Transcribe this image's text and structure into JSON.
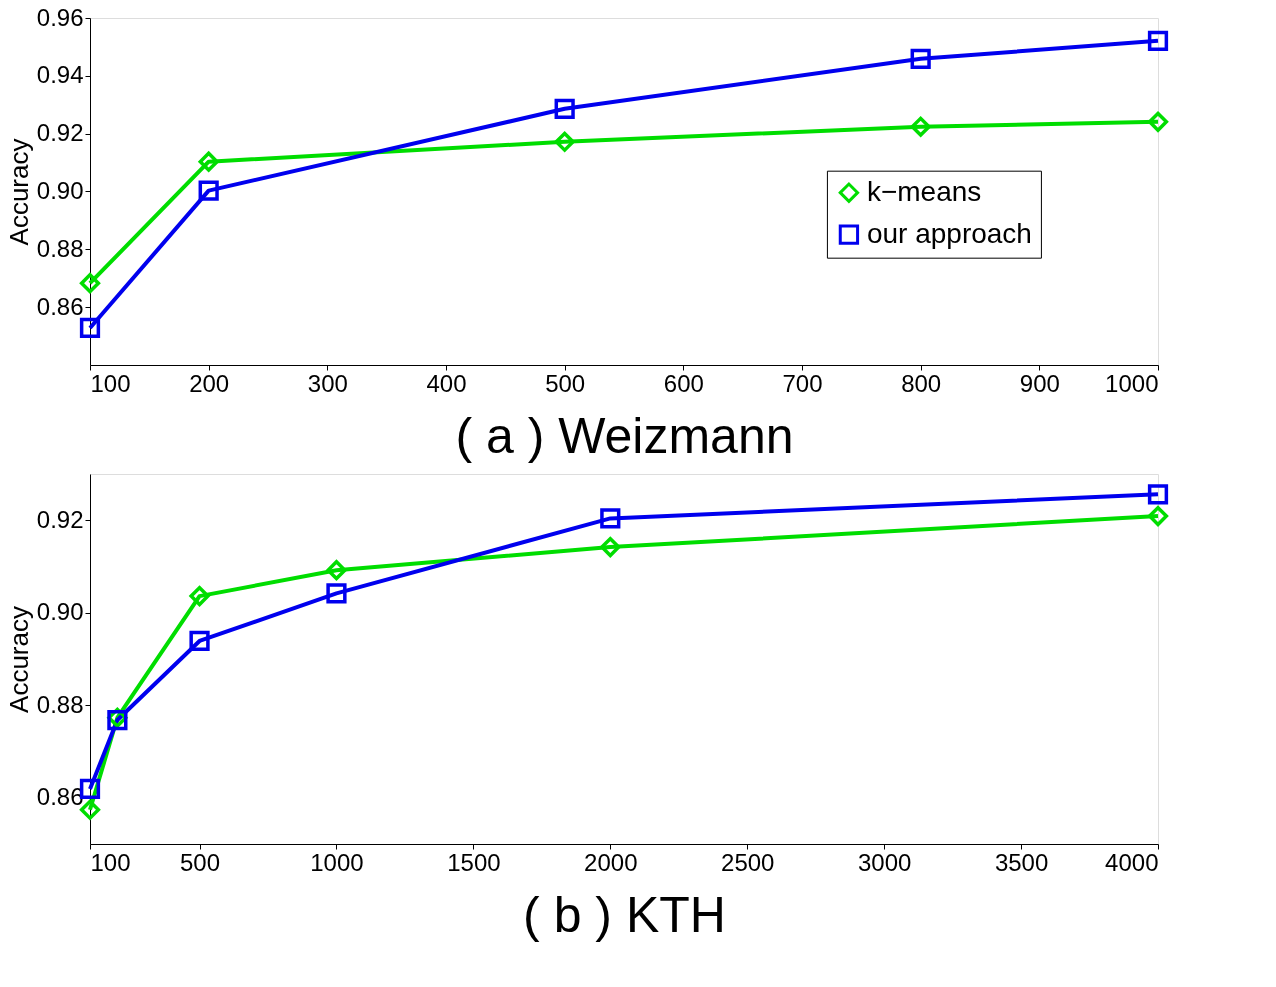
{
  "chart_data": [
    {
      "type": "line",
      "xlabel": "( a ) Weizmann",
      "ylabel": "Accuracy",
      "x": [
        100,
        200,
        500,
        800,
        1000
      ],
      "series": [
        {
          "name": "k−means",
          "color": "#00dd00",
          "marker": "diamond",
          "values": [
            0.8683,
            0.9103,
            0.9172,
            0.9224,
            0.9241
          ]
        },
        {
          "name": "our approach",
          "color": "#0000ee",
          "marker": "square",
          "values": [
            0.8528,
            0.9003,
            0.9286,
            0.9459,
            0.9521
          ]
        }
      ],
      "xlim": [
        100,
        1000
      ],
      "xticks": [
        100,
        200,
        300,
        400,
        500,
        600,
        700,
        800,
        900,
        1000
      ],
      "ylim": [
        0.84,
        0.96
      ],
      "yticks": [
        0.86,
        0.88,
        {
          "value": 0.9,
          "label": "0.90"
        },
        0.92,
        0.94,
        0.96
      ],
      "grid": false,
      "legend": "right",
      "line_style": "solid"
    },
    {
      "type": "line",
      "xlabel": "( b ) KTH",
      "ylabel": "Accuracy",
      "x": [
        100,
        200,
        500,
        1000,
        2000,
        4000
      ],
      "series": [
        {
          "name": "k−means",
          "color": "#00dd00",
          "marker": "diamond",
          "values": [
            0.8574,
            0.8773,
            0.9036,
            0.9092,
            0.9142,
            0.9209
          ]
        },
        {
          "name": "our approach",
          "color": "#0000ee",
          "marker": "square",
          "values": [
            0.8619,
            0.8768,
            0.8939,
            0.9042,
            0.9204,
            0.9256
          ]
        }
      ],
      "xlim": [
        100,
        4000
      ],
      "xticks": [
        100,
        500,
        1000,
        1500,
        2000,
        2500,
        3000,
        3500,
        4000
      ],
      "ylim": [
        0.85,
        0.93
      ],
      "yticks": [
        0.86,
        0.88,
        {
          "value": 0.9,
          "label": "0.90"
        },
        0.92
      ],
      "grid": false,
      "legend": "right",
      "line_style": "solid"
    }
  ]
}
